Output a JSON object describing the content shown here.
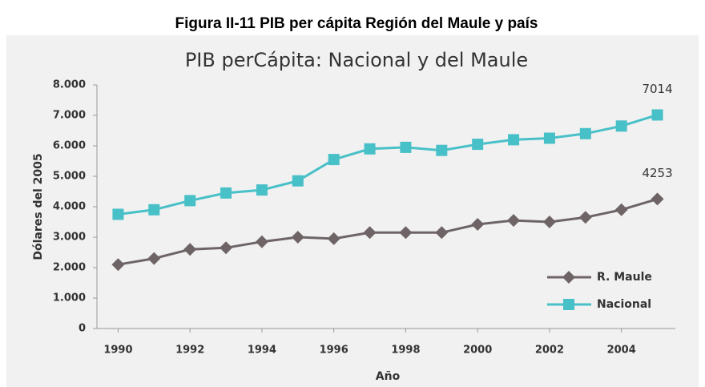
{
  "caption": "Figura II-11 PIB per cápita Región del Maule y país",
  "chart_data": {
    "type": "line",
    "title": "PIB perCápita: Nacional y del Maule",
    "x_label": "Año",
    "y_label": "Dólares del 2005",
    "x": [
      1990,
      1991,
      1992,
      1993,
      1994,
      1995,
      1996,
      1997,
      1998,
      1999,
      2000,
      2001,
      2002,
      2003,
      2004,
      2005
    ],
    "series": [
      {
        "name": "R. Maule",
        "color": "#6e6466",
        "marker": "diamond",
        "values": [
          2100,
          2300,
          2600,
          2650,
          2850,
          3000,
          2950,
          3150,
          3150,
          3150,
          3420,
          3550,
          3500,
          3650,
          3900,
          4253
        ]
      },
      {
        "name": "Nacional",
        "color": "#48c0c8",
        "marker": "square",
        "values": [
          3750,
          3900,
          4200,
          4450,
          4550,
          4850,
          5550,
          5900,
          5950,
          5850,
          6050,
          6200,
          6250,
          6400,
          6650,
          7014
        ]
      }
    ],
    "xlim": [
      1989.5,
      2005.5
    ],
    "xticks": [
      1990,
      1992,
      1994,
      1996,
      1998,
      2000,
      2002,
      2004
    ],
    "ylim": [
      0,
      8000
    ],
    "yticks": [
      0,
      {
        "value": 1000,
        "label": "1.000"
      },
      {
        "value": 2000,
        "label": "2.000"
      },
      {
        "value": 3000,
        "label": "3.000"
      },
      {
        "value": 4000,
        "label": "4.000"
      },
      {
        "value": 5000,
        "label": "5.000"
      },
      {
        "value": 6000,
        "label": "6.000"
      },
      {
        "value": 7000,
        "label": "7.000"
      },
      {
        "value": 8000,
        "label": "8.000"
      }
    ],
    "grid": false,
    "legend": "lower right"
  }
}
